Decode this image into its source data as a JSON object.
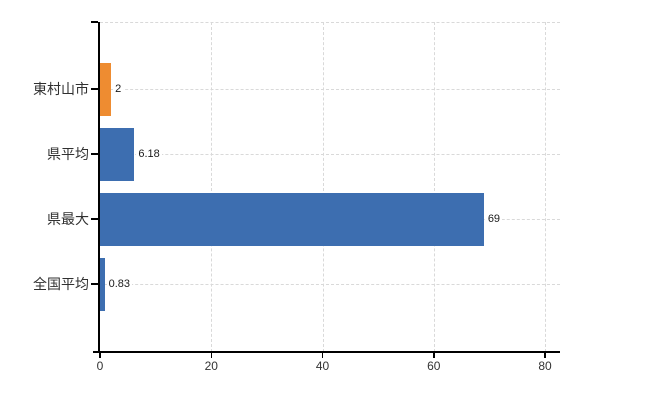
{
  "chart_data": {
    "type": "bar",
    "orientation": "horizontal",
    "title": "",
    "xlabel": "",
    "ylabel": "",
    "categories": [
      "東村山市",
      "県平均",
      "県最大",
      "全国平均"
    ],
    "values": [
      2,
      6.18,
      69,
      0.83
    ],
    "value_labels": [
      "2",
      "6.18",
      "69",
      "0.83"
    ],
    "highlight_index": 0,
    "x_ticks": [
      0,
      20,
      40,
      60,
      80
    ],
    "x_tick_labels": [
      "0",
      "20",
      "40",
      "60",
      "80"
    ],
    "xlim": [
      0,
      82.7
    ],
    "grid": true,
    "grid_style": "dashed",
    "legend": false
  },
  "colors": {
    "bar_highlight": "#ee8c31",
    "bar_default": "#3d6eb0",
    "grid": "#d9d9d9",
    "axis": "#000000",
    "tick_label": "#333333",
    "category_label": "#303030",
    "value_label": "#1a1a1a",
    "background": "#ffffff"
  }
}
